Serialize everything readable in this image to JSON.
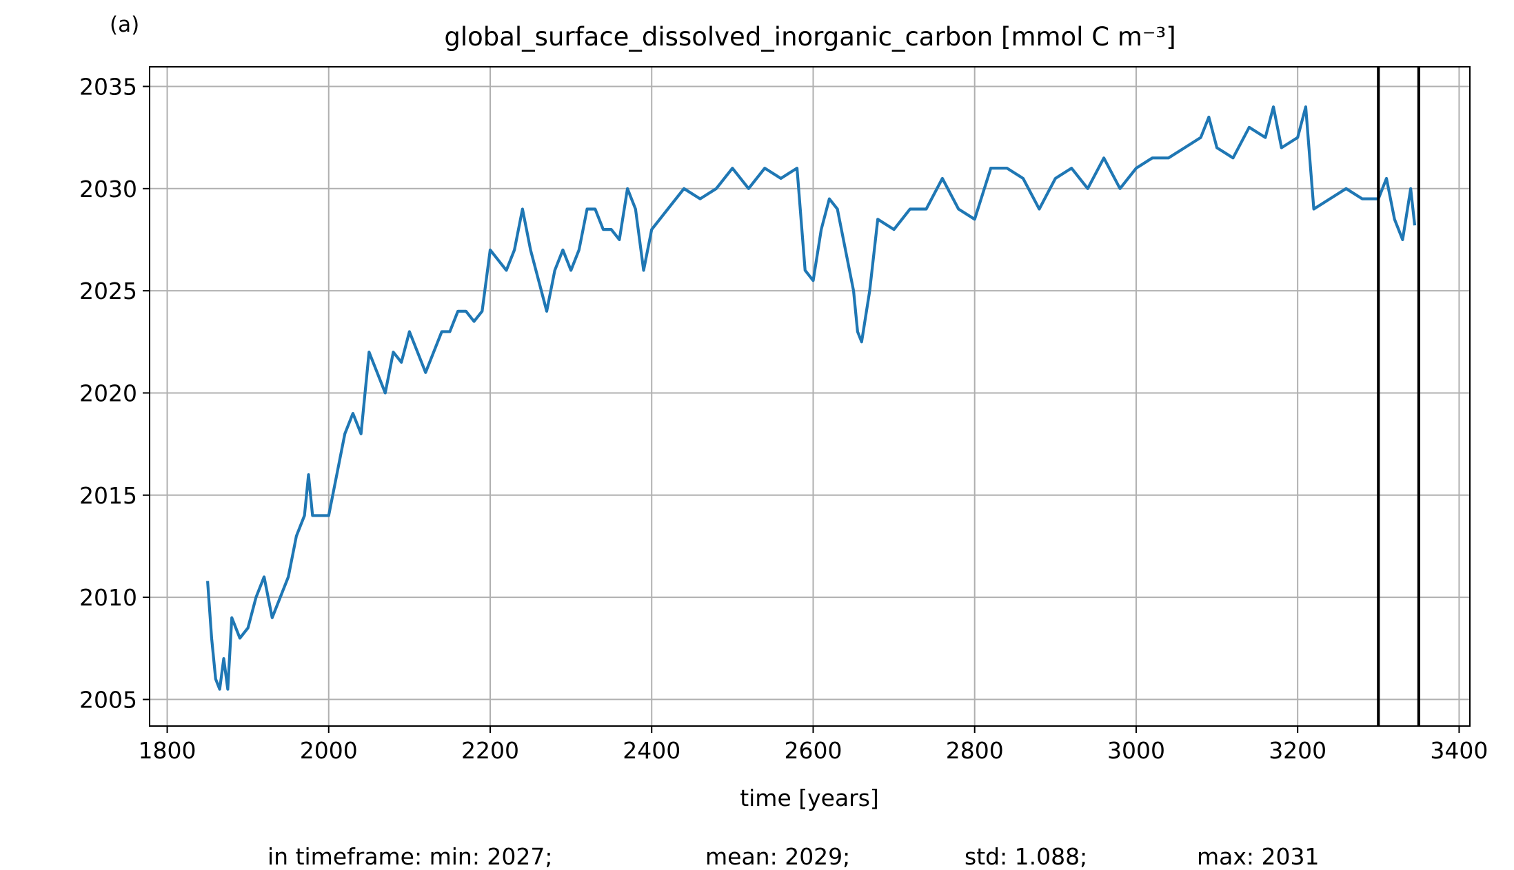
{
  "chart_data": {
    "type": "line",
    "panel_label": "(a)",
    "title": "global_surface_dissolved_inorganic_carbon [mmol C m⁻³]",
    "x_label": "time [years]",
    "stats": [
      "in timeframe: min: 2027;",
      "mean: 2029;",
      "std: 1.088;",
      "max: 2031"
    ],
    "xlim": [
      1778.2,
      3413.3
    ],
    "ylim": [
      2003.7,
      2035.96
    ],
    "xticks": [
      1800,
      2000,
      2200,
      2400,
      2600,
      2800,
      3000,
      3200,
      3400
    ],
    "yticks": [
      2005,
      2010,
      2015,
      2020,
      2025,
      2030,
      2035
    ],
    "grid": true,
    "vlines": [
      3300,
      3350
    ],
    "vline_color": "#000000",
    "series": [
      {
        "color": "#1f77b4",
        "x": [
          1850,
          1855,
          1860,
          1865,
          1870,
          1875,
          1880,
          1890,
          1900,
          1910,
          1920,
          1930,
          1940,
          1950,
          1960,
          1970,
          1975,
          1980,
          1990,
          2000,
          2010,
          2020,
          2030,
          2040,
          2050,
          2060,
          2070,
          2080,
          2090,
          2100,
          2110,
          2120,
          2130,
          2140,
          2150,
          2160,
          2170,
          2180,
          2190,
          2200,
          2210,
          2220,
          2230,
          2240,
          2250,
          2260,
          2270,
          2280,
          2290,
          2300,
          2310,
          2320,
          2330,
          2340,
          2350,
          2360,
          2370,
          2380,
          2390,
          2400,
          2420,
          2440,
          2460,
          2480,
          2500,
          2520,
          2540,
          2560,
          2580,
          2590,
          2600,
          2610,
          2620,
          2630,
          2640,
          2650,
          2655,
          2660,
          2670,
          2680,
          2700,
          2720,
          2740,
          2760,
          2780,
          2800,
          2820,
          2840,
          2860,
          2880,
          2900,
          2920,
          2940,
          2960,
          2980,
          3000,
          3020,
          3040,
          3060,
          3080,
          3090,
          3100,
          3120,
          3140,
          3160,
          3170,
          3180,
          3200,
          3210,
          3220,
          3240,
          3260,
          3280,
          3300,
          3310,
          3320,
          3330,
          3340,
          3345
        ],
        "values": [
          2010.8,
          2008,
          2006,
          2005.5,
          2007,
          2005.5,
          2009,
          2008,
          2008.5,
          2010,
          2011,
          2009,
          2010,
          2011,
          2013,
          2014,
          2016,
          2014,
          2014,
          2014,
          2016,
          2018,
          2019,
          2018,
          2022,
          2021,
          2020,
          2022,
          2021.5,
          2023,
          2022,
          2021,
          2022,
          2023,
          2023,
          2024,
          2024,
          2023.5,
          2024,
          2027,
          2026.5,
          2026,
          2027,
          2029,
          2027,
          2025.5,
          2024,
          2026,
          2027,
          2026,
          2027,
          2029,
          2029,
          2028,
          2028,
          2027.5,
          2030,
          2029,
          2026,
          2028,
          2029,
          2030,
          2029.5,
          2030,
          2031,
          2030,
          2031,
          2030.5,
          2031,
          2026,
          2025.5,
          2028,
          2029.5,
          2029,
          2027,
          2025,
          2023,
          2022.5,
          2025,
          2028.5,
          2028,
          2029,
          2029,
          2030.5,
          2029,
          2028.5,
          2031,
          2031,
          2030.5,
          2029,
          2030.5,
          2031,
          2030,
          2031.5,
          2030,
          2031,
          2031.5,
          2031.5,
          2032,
          2032.5,
          2033.5,
          2032,
          2031.5,
          2033,
          2032.5,
          2034,
          2032,
          2032.5,
          2034,
          2029,
          2029.5,
          2030,
          2029.5,
          2029.5,
          2030.5,
          2028.5,
          2027.5,
          2030,
          2028.2
        ]
      }
    ]
  }
}
